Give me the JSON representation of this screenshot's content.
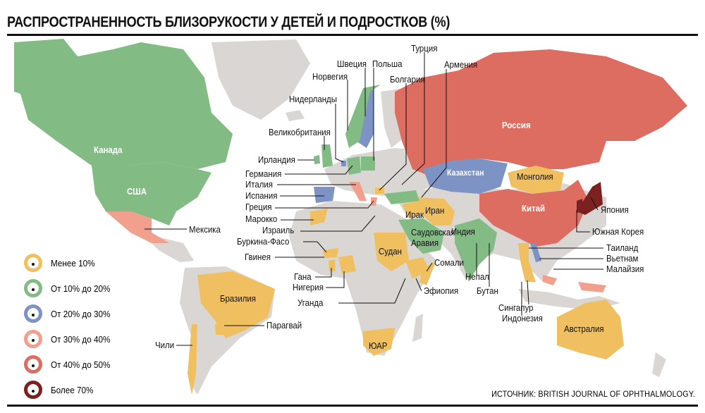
{
  "title": "РАСПРОСТРАНЕННОСТЬ БЛИЗОРУКОСТИ У ДЕТЕЙ И ПОДРОСТКОВ (%)",
  "colors": {
    "land": "#d9d6d3",
    "under10": "#f0c060",
    "10to20": "#82bb84",
    "20to30": "#7d93c4",
    "30to40": "#f1a08e",
    "40to50": "#dd6c61",
    "over70": "#7b2221"
  },
  "legend": [
    {
      "label": "Менее 10%",
      "color": "#f0c060"
    },
    {
      "label": "От 10% до 20%",
      "color": "#82bb84"
    },
    {
      "label": "От 20% до 30%",
      "color": "#7d93c4"
    },
    {
      "label": "От 30% до 40%",
      "color": "#f1a08e"
    },
    {
      "label": "От 40% до 50%",
      "color": "#dd6c61"
    },
    {
      "label": "Более 70%",
      "color": "#7b2221"
    }
  ],
  "countries_inline": {
    "canada": "Канада",
    "usa": "США",
    "russia": "Россия",
    "kazakhstan": "Казахстан",
    "mongolia": "Монголия",
    "china": "Китай",
    "iran": "Иран",
    "iraq": "Ирак",
    "saudi1": "Саудовская",
    "saudi2": "Аравия",
    "india": "Индия",
    "sudan": "Судан",
    "brazil": "Бразилия",
    "australia": "Австралия",
    "sar": "ЮАР"
  },
  "countries_callout": {
    "turkey": "Турция",
    "armenia": "Армения",
    "sweden": "Швеция",
    "poland": "Польша",
    "norway": "Норвегия",
    "bulgaria": "Болгария",
    "netherlands": "Нидерланды",
    "uk": "Великобритания",
    "ireland": "Ирландия",
    "germany": "Германия",
    "italy": "Италия",
    "spain": "Испания",
    "greece": "Греция",
    "morocco": "Марокко",
    "israel": "Израиль",
    "burkina": "Буркина-Фасо",
    "guinea": "Гвинея",
    "ghana": "Гана",
    "nigeria": "Нигерия",
    "uganda": "Уганда",
    "chile": "Чили",
    "paraguay": "Парагвай",
    "mexico": "Мексика",
    "japan": "Япония",
    "korea": "Южная Корея",
    "thailand": "Таиланд",
    "vietnam": "Вьетнам",
    "malaysia": "Малайзия",
    "somalia": "Сомали",
    "ethiopia": "Эфиопия",
    "nepal": "Непал",
    "bhutan": "Бутан",
    "singapore": "Сингапур",
    "indonesia": "Индонезия"
  },
  "source": "ИСТОЧНИК: BRITISH JOURNAL OF OPHTHALMOLOGY."
}
